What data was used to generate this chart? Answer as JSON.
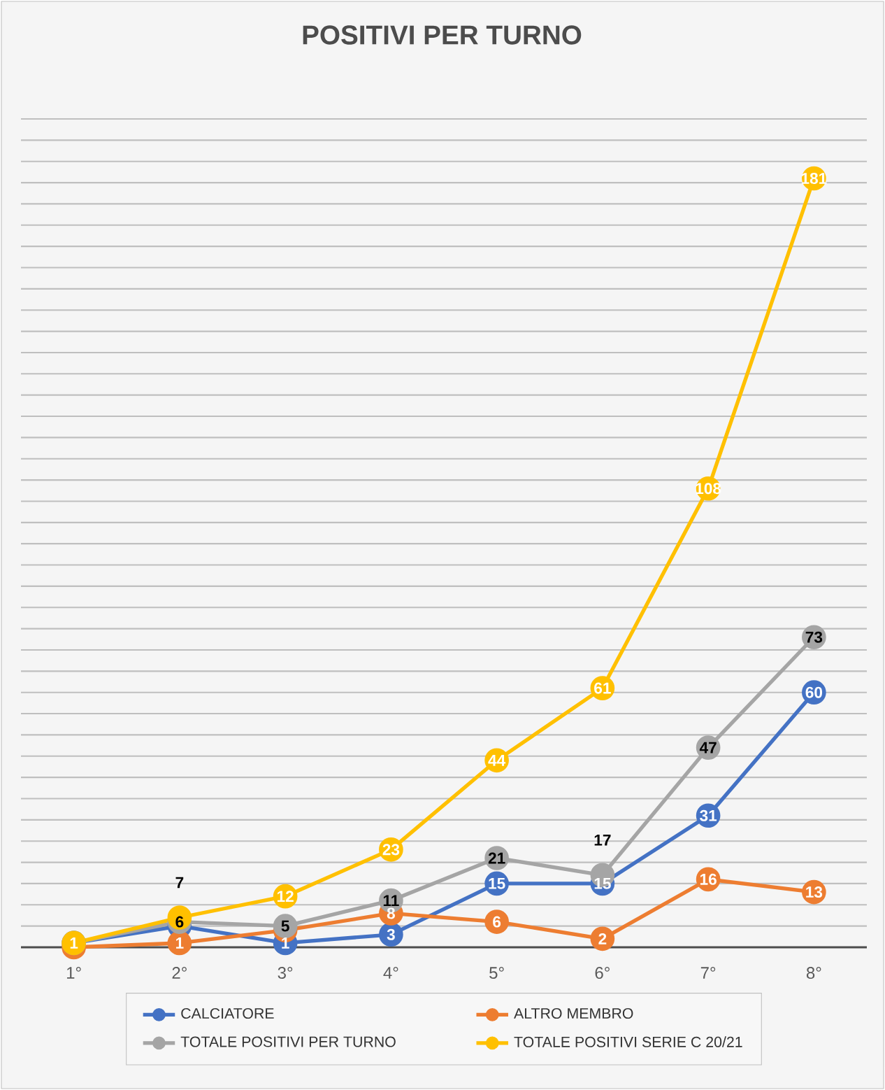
{
  "chart_data": {
    "type": "line",
    "title": "POSITIVI PER TURNO",
    "categories": [
      "1°",
      "2°",
      "3°",
      "4°",
      "5°",
      "6°",
      "7°",
      "8°"
    ],
    "series": [
      {
        "name": "CALCIATORE",
        "color": "#4472c4",
        "values": [
          1,
          5,
          1,
          3,
          15,
          15,
          31,
          60
        ],
        "value_labels": [
          null,
          null,
          "1",
          "3",
          "15",
          "15",
          "31",
          "60"
        ]
      },
      {
        "name": "ALTRO MEMBRO",
        "color": "#ed7d31",
        "values": [
          0,
          1,
          4,
          8,
          6,
          2,
          16,
          13
        ],
        "value_labels": [
          null,
          "1",
          null,
          "8",
          "6",
          "2",
          "16",
          "13"
        ]
      },
      {
        "name": "TOTALE POSITIVI PER TURNO",
        "color": "#a5a5a5",
        "values": [
          1,
          6,
          5,
          11,
          21,
          17,
          47,
          73
        ],
        "value_labels": [
          null,
          "6",
          "5",
          "11",
          "21",
          "17",
          "47",
          "73"
        ]
      },
      {
        "name": "TOTALE POSITIVI SERIE C 20/21",
        "color": "#ffc000",
        "values": [
          1,
          7,
          12,
          23,
          44,
          61,
          108,
          181
        ],
        "value_labels": [
          "1",
          "7",
          "12",
          "23",
          "44",
          "61",
          "108",
          "181"
        ]
      }
    ],
    "ylim": [
      0,
      195
    ],
    "yticks": [
      {
        "value": 0,
        "label": null
      },
      {
        "value": 5,
        "label": null
      },
      {
        "value": 10,
        "label": null
      },
      {
        "value": 15,
        "label": null
      },
      {
        "value": 20,
        "label": null
      },
      {
        "value": 25,
        "label": null
      },
      {
        "value": 30,
        "label": null
      },
      {
        "value": 35,
        "label": null
      },
      {
        "value": 40,
        "label": null
      },
      {
        "value": 45,
        "label": null
      },
      {
        "value": 50,
        "label": null
      },
      {
        "value": 55,
        "label": null
      },
      {
        "value": 60,
        "label": null
      },
      {
        "value": 65,
        "label": null
      },
      {
        "value": 70,
        "label": null
      },
      {
        "value": 75,
        "label": null
      },
      {
        "value": 80,
        "label": null
      },
      {
        "value": 85,
        "label": null
      },
      {
        "value": 90,
        "label": null
      },
      {
        "value": 95,
        "label": null
      },
      {
        "value": 100,
        "label": null
      },
      {
        "value": 105,
        "label": null
      },
      {
        "value": 110,
        "label": null
      },
      {
        "value": 115,
        "label": null
      },
      {
        "value": 120,
        "label": null
      },
      {
        "value": 125,
        "label": null
      },
      {
        "value": 130,
        "label": null
      },
      {
        "value": 135,
        "label": null
      },
      {
        "value": 140,
        "label": null
      },
      {
        "value": 145,
        "label": null
      },
      {
        "value": 150,
        "label": null
      },
      {
        "value": 155,
        "label": null
      },
      {
        "value": 160,
        "label": null
      },
      {
        "value": 165,
        "label": null
      },
      {
        "value": 170,
        "label": null
      },
      {
        "value": 175,
        "label": null
      },
      {
        "value": 180,
        "label": null
      },
      {
        "value": 185,
        "label": null
      },
      {
        "value": 190,
        "label": null
      },
      {
        "value": 195,
        "label": null
      }
    ],
    "tick_labels": "x",
    "grid": "y",
    "legend": "bottom",
    "marker": "circle",
    "line_style": "solid"
  }
}
